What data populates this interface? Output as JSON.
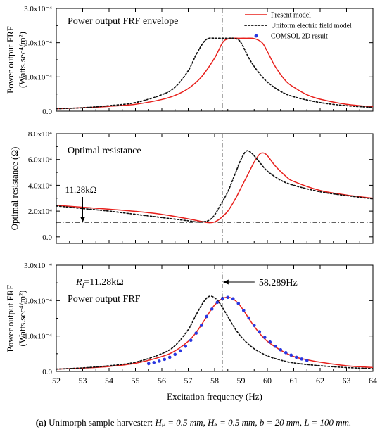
{
  "chart_data": [
    {
      "type": "line",
      "panel_title": "Power output FRF envelope",
      "ylabel_line1": "Power output FRF",
      "ylabel_line2": "(Watts.sec⁴/m²)",
      "xlim": [
        52,
        64
      ],
      "ylim": [
        0,
        0.0003
      ],
      "yticks": [
        {
          "value": 0,
          "label": "0.0"
        },
        {
          "value": 0.0001,
          "label": "1.0x10⁻⁴"
        },
        {
          "value": 0.0002,
          "label": "2.0x10⁻⁴"
        },
        {
          "value": 0.0003,
          "label": "3.0x10⁻⁴"
        }
      ],
      "legend": {
        "placement": "top-right",
        "entries": [
          {
            "label": "Present model",
            "style": "solid-red"
          },
          {
            "label": "Uniform electric field model",
            "style": "dotted-black"
          },
          {
            "label": "COMSOL 2D result",
            "style": "blue-dot"
          }
        ]
      },
      "series": [
        {
          "name": "Present model",
          "color": "#e8201c",
          "style": "solid",
          "x": [
            52,
            53,
            54,
            55,
            56,
            56.5,
            57,
            57.5,
            58,
            58.3,
            58.5,
            58.7,
            58.9,
            59.2,
            59.5,
            59.8,
            60,
            60.3,
            60.7,
            61,
            61.5,
            62,
            63,
            64
          ],
          "y": [
            7e-06,
            1e-05,
            1.4e-05,
            2e-05,
            3.4e-05,
            4.6e-05,
            6.6e-05,
            0.0001,
            0.000155,
            0.0002,
            0.000211,
            0.000213,
            0.000213,
            0.000213,
            0.000212,
            0.0002,
            0.000174,
            0.00013,
            8.8e-05,
            7e-05,
            4.8e-05,
            3.5e-05,
            2e-05,
            1.3e-05
          ]
        },
        {
          "name": "Uniform electric field model",
          "color": "#111111",
          "style": "dotted",
          "x": [
            52,
            53,
            54,
            55,
            56,
            56.5,
            57,
            57.3,
            57.6,
            57.8,
            58,
            58.2,
            58.5,
            58.8,
            59,
            59.3,
            59.6,
            60,
            60.5,
            61,
            62,
            63,
            64
          ],
          "y": [
            7e-06,
            1e-05,
            1.6e-05,
            2.5e-05,
            4.8e-05,
            7e-05,
            0.000118,
            0.000165,
            0.000203,
            0.000213,
            0.000213,
            0.000213,
            0.000213,
            0.000212,
            0.0002,
            0.000155,
            0.00012,
            8.5e-05,
            5.8e-05,
            4.2e-05,
            2.5e-05,
            1.6e-05,
            1.1e-05
          ]
        }
      ],
      "vline_x": 58.289
    },
    {
      "type": "line",
      "panel_title": "Optimal resistance",
      "ylabel_line1": "Optimal resistance (Ω)",
      "xlim": [
        52,
        64
      ],
      "ylim": [
        -5000,
        80000
      ],
      "yticks": [
        {
          "value": 0,
          "label": "0.0"
        },
        {
          "value": 20000,
          "label": "2.0x10⁴"
        },
        {
          "value": 40000,
          "label": "4.0x10⁴"
        },
        {
          "value": 60000,
          "label": "6.0x10⁴"
        },
        {
          "value": 80000,
          "label": "8.0x10⁴"
        }
      ],
      "annotation": {
        "text": "11.28kΩ",
        "x": 53,
        "y": 11280
      },
      "hline_y": 11280,
      "series": [
        {
          "name": "Present model",
          "color": "#e8201c",
          "style": "solid",
          "x": [
            52,
            53,
            54,
            55,
            56,
            57,
            57.5,
            57.8,
            58,
            58.2,
            58.5,
            58.8,
            59,
            59.3,
            59.5,
            59.7,
            59.85,
            60,
            60.3,
            60.7,
            61,
            62,
            63,
            64
          ],
          "y": [
            24500,
            23000,
            21500,
            19800,
            17500,
            14000,
            12000,
            11000,
            11600,
            14000,
            20000,
            30000,
            38000,
            50000,
            58000,
            64000,
            65000,
            63000,
            55000,
            47000,
            43000,
            36000,
            32500,
            30000
          ]
        },
        {
          "name": "Uniform electric field model",
          "color": "#111111",
          "style": "dotted",
          "x": [
            52,
            53,
            54,
            55,
            56,
            57,
            57.3,
            57.6,
            57.8,
            58,
            58.2,
            58.5,
            58.8,
            59,
            59.2,
            59.4,
            59.7,
            60,
            60.5,
            61,
            62,
            63,
            64
          ],
          "y": [
            24000,
            22000,
            20000,
            17500,
            15000,
            12500,
            11600,
            11800,
            13000,
            17000,
            24000,
            35000,
            50000,
            60000,
            66500,
            65000,
            58000,
            51000,
            44000,
            40000,
            35000,
            32000,
            29500
          ]
        }
      ],
      "vline_x": 58.289
    },
    {
      "type": "line",
      "panel_title": "Power output FRF",
      "ylabel_line1": "Power output FRF",
      "ylabel_line2": "(Watts.sec⁴/m²)",
      "xlim": [
        52,
        64
      ],
      "ylim": [
        0,
        0.0003
      ],
      "yticks": [
        {
          "value": 0,
          "label": "0.0"
        },
        {
          "value": 0.0001,
          "label": "1.0x10⁻⁴"
        },
        {
          "value": 0.0002,
          "label": "2.0x10⁻⁴"
        },
        {
          "value": 0.0003,
          "label": "3.0x10⁻⁴"
        }
      ],
      "xticks": [
        52,
        53,
        54,
        55,
        56,
        57,
        58,
        59,
        60,
        61,
        62,
        63,
        64
      ],
      "xlabel": "Excitation frequency (Hz)",
      "rl_label_main": "R",
      "rl_label_sub": "l",
      "rl_label_value": "=11.28kΩ",
      "freq_annotation": {
        "text": "58.289Hz",
        "x": 58.289
      },
      "series": [
        {
          "name": "Present model",
          "color": "#e8201c",
          "style": "solid",
          "x": [
            52,
            53,
            54,
            55,
            56,
            56.5,
            57,
            57.3,
            57.6,
            57.9,
            58.1,
            58.3,
            58.45,
            58.55,
            58.7,
            58.9,
            59.1,
            59.4,
            59.7,
            60,
            60.5,
            61,
            61.5,
            62,
            63,
            64
          ],
          "y": [
            6.5e-06,
            9.5e-06,
            1.4e-05,
            2.3e-05,
            4.2e-05,
            5.8e-05,
            8.5e-05,
            0.00011,
            0.000143,
            0.000178,
            0.000195,
            0.000206,
            0.000209,
            0.000209,
            0.000205,
            0.000192,
            0.000172,
            0.000138,
            0.000108,
            8.5e-05,
            6e-05,
            4.2e-05,
            3.3e-05,
            2.6e-05,
            1.6e-05,
            1.1e-05
          ]
        },
        {
          "name": "Uniform electric field model",
          "color": "#111111",
          "style": "dotted",
          "x": [
            52,
            53,
            54,
            55,
            56,
            56.5,
            57,
            57.3,
            57.6,
            57.8,
            58,
            58.2,
            58.5,
            58.8,
            59.1,
            59.5,
            60,
            60.5,
            61,
            62,
            63,
            64
          ],
          "y": [
            6.5e-06,
            1e-05,
            1.6e-05,
            2.6e-05,
            5e-05,
            7.3e-05,
            0.000118,
            0.00016,
            0.000198,
            0.000212,
            0.000208,
            0.000192,
            0.000155,
            0.000118,
            9e-05,
            6.4e-05,
            4.4e-05,
            3.2e-05,
            2.4e-05,
            1.6e-05,
            1.1e-05,
            8e-06
          ]
        },
        {
          "name": "COMSOL 2D result",
          "color": "#2a37e0",
          "style": "dots",
          "x": [
            55.5,
            55.7,
            55.9,
            56.1,
            56.3,
            56.5,
            56.7,
            56.9,
            57.1,
            57.3,
            57.5,
            57.7,
            57.9,
            58.1,
            58.3,
            58.5,
            58.7,
            58.9,
            59.1,
            59.3,
            59.5,
            59.7,
            59.9,
            60.1,
            60.3,
            60.5,
            60.7,
            60.9,
            61.1,
            61.3,
            61.5
          ],
          "y": [
            2.2e-05,
            2.5e-05,
            2.9e-05,
            3.4e-05,
            4e-05,
            4.8e-05,
            5.8e-05,
            7.1e-05,
            8.8e-05,
            0.000108,
            0.00013,
            0.000155,
            0.000176,
            0.000195,
            0.000206,
            0.000209,
            0.000205,
            0.000192,
            0.000172,
            0.000151,
            0.00013,
            0.000112,
            9.6e-05,
            8.3e-05,
            7.1e-05,
            6.1e-05,
            5.3e-05,
            4.6e-05,
            4e-05,
            3.5e-05,
            3.1e-05
          ]
        }
      ],
      "vline_x": 58.289
    }
  ],
  "caption": {
    "bold": "(a)",
    "text": " Unimorph sample harvester:  ",
    "params": "Hₚ = 0.5 mm, Hₛ = 0.5 mm,  b = 20 mm, L = 100 mm."
  }
}
